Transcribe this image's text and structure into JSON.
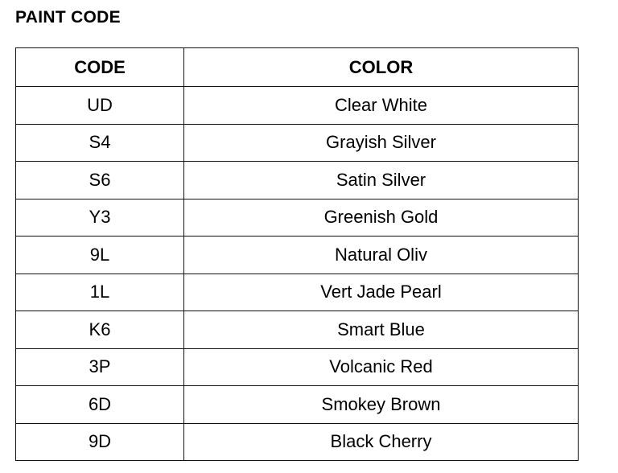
{
  "title": "PAINT CODE",
  "headers": {
    "code": "CODE",
    "color": "COLOR"
  },
  "rows": [
    {
      "code": "UD",
      "color": "Clear White"
    },
    {
      "code": "S4",
      "color": "Grayish Silver"
    },
    {
      "code": "S6",
      "color": "Satin Silver"
    },
    {
      "code": "Y3",
      "color": "Greenish Gold"
    },
    {
      "code": "9L",
      "color": "Natural Oliv"
    },
    {
      "code": "1L",
      "color": "Vert Jade Pearl"
    },
    {
      "code": "K6",
      "color": "Smart Blue"
    },
    {
      "code": "3P",
      "color": "Volcanic Red"
    },
    {
      "code": "6D",
      "color": "Smokey Brown"
    },
    {
      "code": "9D",
      "color": "Black Cherry"
    }
  ]
}
